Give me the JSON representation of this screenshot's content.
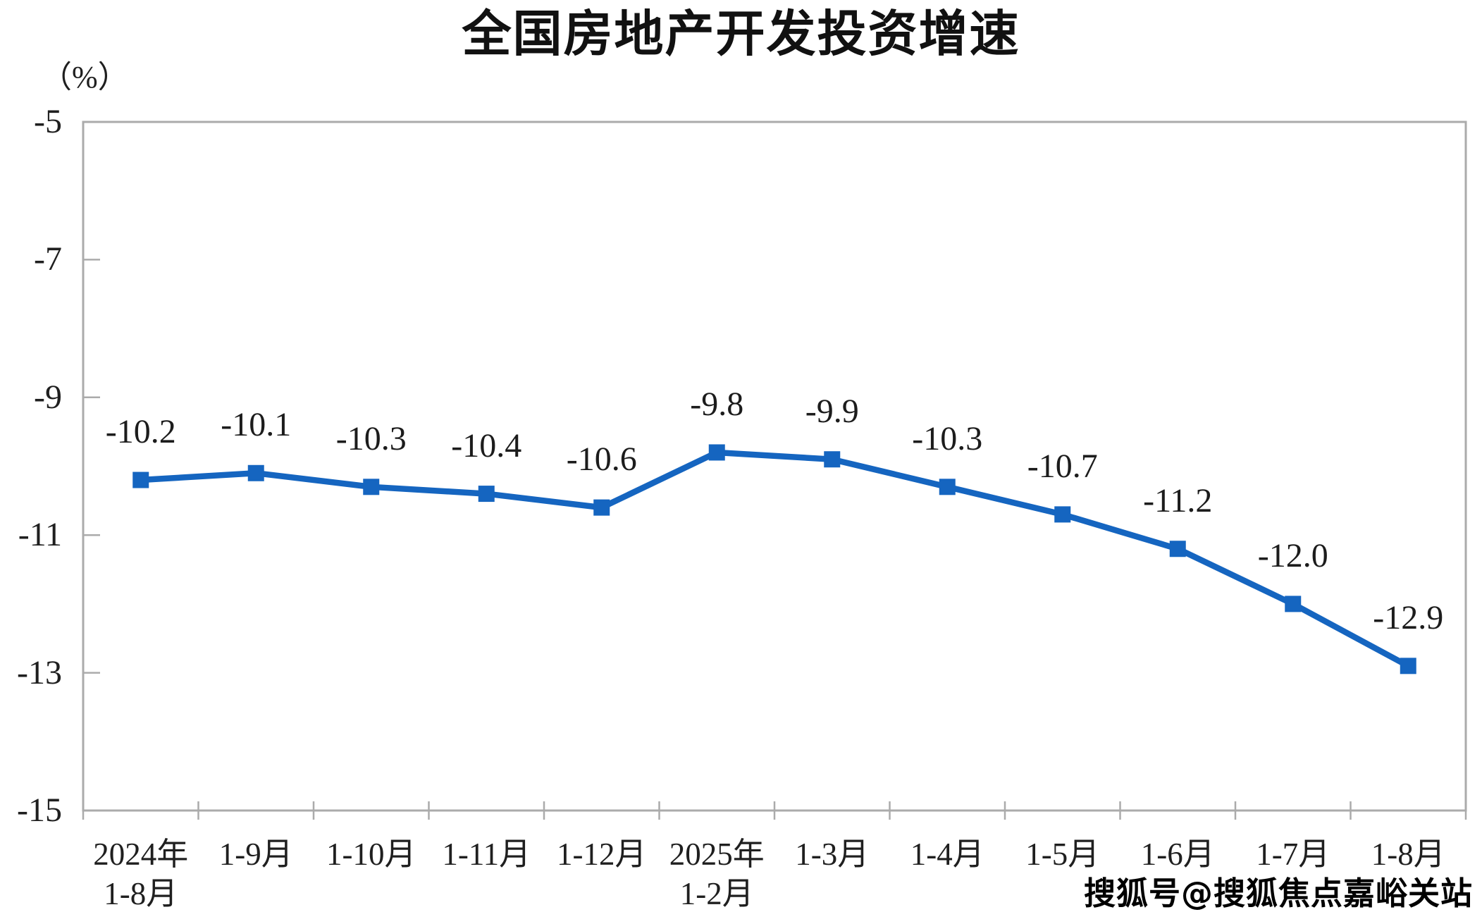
{
  "chart_data": {
    "type": "line",
    "title": "全国房地产开发投资增速",
    "unit_label": "（%）",
    "categories": [
      "2024年\n1-8月",
      "1-9月",
      "1-10月",
      "1-11月",
      "1-12月",
      "2025年\n1-2月",
      "1-3月",
      "1-4月",
      "1-5月",
      "1-6月",
      "1-7月",
      "1-8月"
    ],
    "values": [
      -10.2,
      -10.1,
      -10.3,
      -10.4,
      -10.6,
      -9.8,
      -9.9,
      -10.3,
      -10.7,
      -11.2,
      -12.0,
      -12.9
    ],
    "point_labels": [
      "-10.2",
      "-10.1",
      "-10.3",
      "-10.4",
      "-10.6",
      "-9.8",
      "-9.9",
      "-10.3",
      "-10.7",
      "-11.2",
      "-12.0",
      "-12.9"
    ],
    "y_tick_labels": [
      "-5",
      "-7",
      "-9",
      "-11",
      "-13",
      "-15"
    ],
    "y_ticks": [
      -5,
      -7,
      -9,
      -11,
      -13,
      -15
    ],
    "ylim": [
      -15,
      -5
    ],
    "xlabel": "",
    "ylabel": "（%）",
    "grid": false,
    "legend": null,
    "line_color": "#1565C0",
    "axis_color": "#ABABAB",
    "label_color": "#1c1c1c"
  },
  "watermark": "搜狐号@搜狐焦点嘉峪关站"
}
